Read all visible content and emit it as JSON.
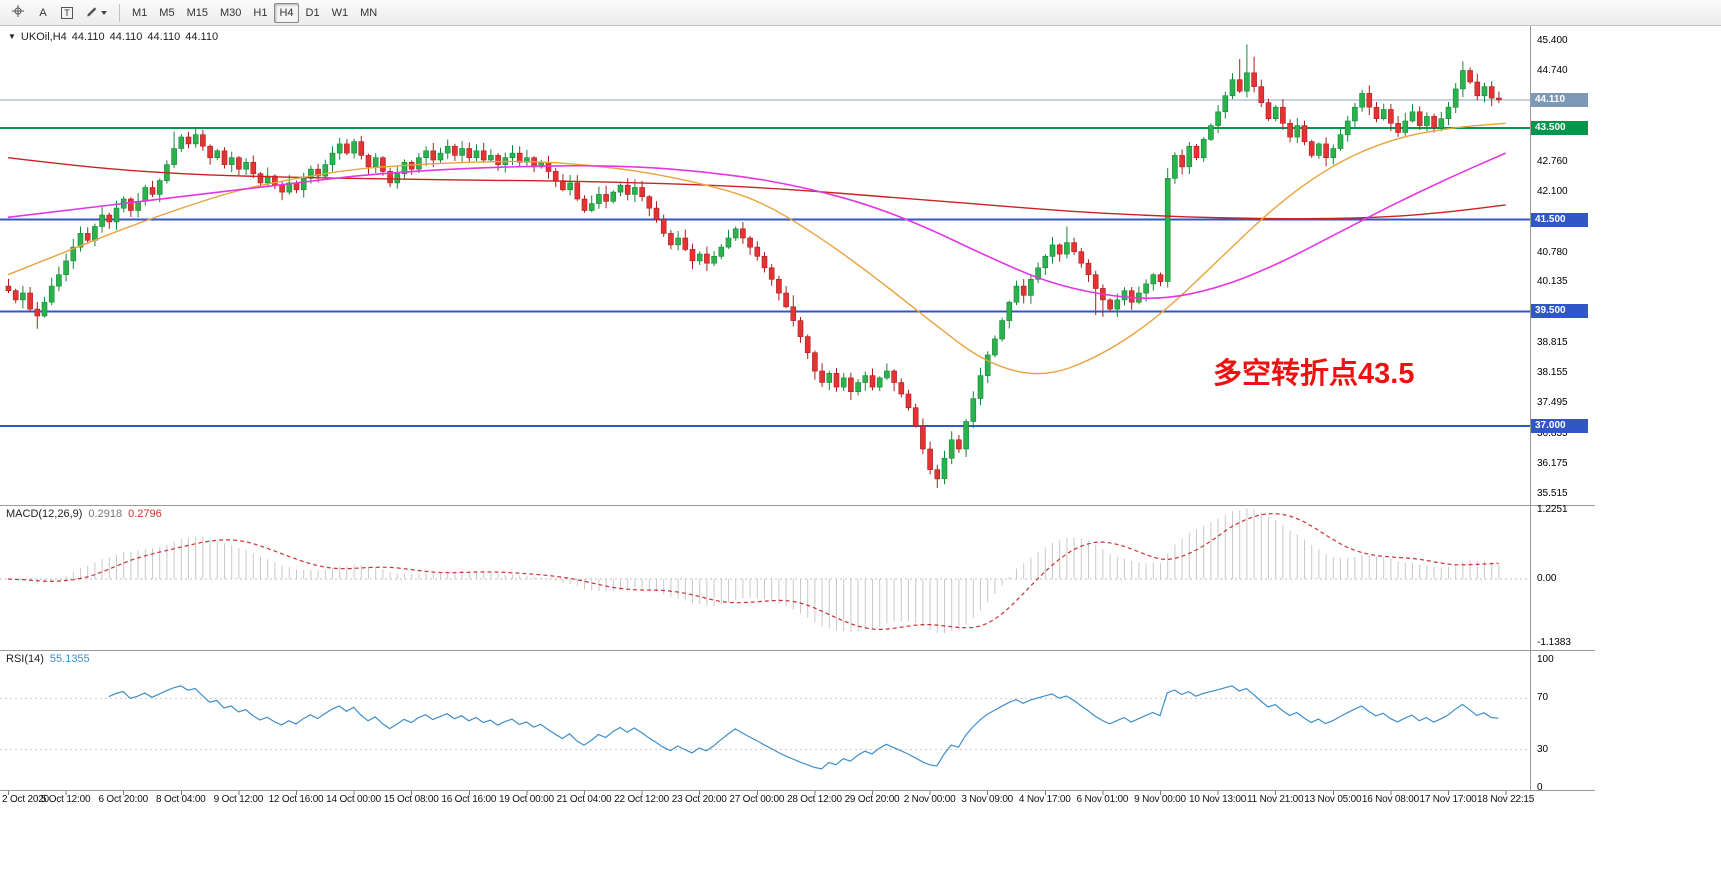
{
  "toolbar": {
    "text_label_tool": "A",
    "text_tool": "T",
    "timeframes": [
      "M1",
      "M5",
      "M15",
      "M30",
      "H1",
      "H4",
      "D1",
      "W1",
      "MN"
    ],
    "active_timeframe": "H4"
  },
  "symbol_readout": {
    "dropdown_glyph": "▼",
    "symbol": "UKOil,H4",
    "open": "44.110",
    "high": "44.110",
    "low": "44.110",
    "close": "44.110"
  },
  "annotation": {
    "text": "多空转折点43.5",
    "color": "#ee1111"
  },
  "colors": {
    "background": "#ffffff",
    "candle_up": "#2bb24c",
    "candle_up_border": "#15873a",
    "candle_down": "#e33434",
    "candle_down_border": "#aa1f1f",
    "separator": "#9a9a9a"
  },
  "chart_data": {
    "type": "candlestick",
    "symbol": "UKOil",
    "timeframe": "H4",
    "price_axis": {
      "labels": [
        "45.400",
        "44.740",
        "42.760",
        "42.100",
        "40.780",
        "40.135",
        "38.815",
        "38.155",
        "37.495",
        "36.835",
        "36.175",
        "35.515"
      ],
      "label_values": [
        45.4,
        44.74,
        42.76,
        42.1,
        40.78,
        40.135,
        38.815,
        38.155,
        37.495,
        36.835,
        36.175,
        35.515
      ],
      "min": 35.28,
      "max": 45.72
    },
    "price_markers": [
      {
        "label": "44.110",
        "value": 44.11,
        "bg": "#7d99b6",
        "type": "current-price"
      },
      {
        "label": "43.500",
        "value": 43.5,
        "bg": "#00964b",
        "type": "level"
      },
      {
        "label": "41.500",
        "value": 41.5,
        "bg": "#3056c8",
        "type": "level"
      },
      {
        "label": "39.500",
        "value": 39.5,
        "bg": "#3056c8",
        "type": "level"
      },
      {
        "label": "37.000",
        "value": 37.0,
        "bg": "#3056c8",
        "type": "level"
      }
    ],
    "hlines": [
      {
        "value": 44.11,
        "color": "#8aa6c2",
        "width": 1
      },
      {
        "value": 43.5,
        "color": "#00964b",
        "width": 2
      },
      {
        "value": 41.5,
        "color": "#3056c8",
        "width": 2
      },
      {
        "value": 39.5,
        "color": "#3056c8",
        "width": 2
      },
      {
        "value": 37.0,
        "color": "#3056c8",
        "width": 2
      }
    ],
    "candles": {
      "first_open": 40.05,
      "closes": [
        39.95,
        39.75,
        39.9,
        39.55,
        39.4,
        39.7,
        40.05,
        40.3,
        40.6,
        40.9,
        41.2,
        41.05,
        41.35,
        41.6,
        41.45,
        41.75,
        41.95,
        41.7,
        41.9,
        42.2,
        42.05,
        42.35,
        42.7,
        43.05,
        43.3,
        43.15,
        43.35,
        43.1,
        42.85,
        43.0,
        42.7,
        42.85,
        42.6,
        42.75,
        42.5,
        42.3,
        42.45,
        42.25,
        42.1,
        42.3,
        42.15,
        42.4,
        42.6,
        42.45,
        42.7,
        42.95,
        43.15,
        42.95,
        43.2,
        42.9,
        42.65,
        42.85,
        42.55,
        42.3,
        42.5,
        42.75,
        42.6,
        42.85,
        43.0,
        42.8,
        42.95,
        43.1,
        42.9,
        43.05,
        42.85,
        43.0,
        42.8,
        42.9,
        42.7,
        42.85,
        42.95,
        42.75,
        42.85,
        42.65,
        42.75,
        42.55,
        42.35,
        42.15,
        42.3,
        41.95,
        41.7,
        41.85,
        42.05,
        41.9,
        42.1,
        42.25,
        42.05,
        42.2,
        42.0,
        41.75,
        41.5,
        41.2,
        40.95,
        41.1,
        40.85,
        40.6,
        40.75,
        40.55,
        40.7,
        40.9,
        41.1,
        41.3,
        41.1,
        40.9,
        40.7,
        40.45,
        40.2,
        39.9,
        39.6,
        39.3,
        38.95,
        38.6,
        38.2,
        37.95,
        38.15,
        37.85,
        38.05,
        37.75,
        37.95,
        38.1,
        37.85,
        38.05,
        38.2,
        37.95,
        37.7,
        37.4,
        37.0,
        36.5,
        36.05,
        35.85,
        36.3,
        36.7,
        36.5,
        37.1,
        37.6,
        38.1,
        38.55,
        38.9,
        39.3,
        39.7,
        40.05,
        39.85,
        40.2,
        40.45,
        40.7,
        40.95,
        40.75,
        41.0,
        40.8,
        40.55,
        40.3,
        40.0,
        39.75,
        39.55,
        39.75,
        39.95,
        39.7,
        39.9,
        40.1,
        40.3,
        40.15,
        42.4,
        42.9,
        42.65,
        43.1,
        42.85,
        43.25,
        43.55,
        43.85,
        44.2,
        44.55,
        44.3,
        44.7,
        44.4,
        44.05,
        43.7,
        43.95,
        43.6,
        43.3,
        43.55,
        43.2,
        42.9,
        43.15,
        42.85,
        43.05,
        43.35,
        43.65,
        43.95,
        44.25,
        43.95,
        43.7,
        43.9,
        43.6,
        43.4,
        43.65,
        43.85,
        43.55,
        43.75,
        43.5,
        43.7,
        43.95,
        44.35,
        44.75,
        44.5,
        44.2,
        44.4,
        44.15,
        44.11
      ],
      "wick_overrides": {
        "4": {
          "low": 39.12
        },
        "23": {
          "high": 43.42
        },
        "26": {
          "high": 43.5
        },
        "109": {
          "high": 39.85
        },
        "128": {
          "low": 35.95
        },
        "129": {
          "low": 35.65
        },
        "147": {
          "high": 41.35
        },
        "151": {
          "low": 39.42
        },
        "152": {
          "low": 39.38
        },
        "161": {
          "low": 40.02,
          "high": 42.62
        },
        "171": {
          "high": 45.0
        },
        "172": {
          "high": 45.32
        },
        "173": {
          "high": 45.05
        },
        "202": {
          "high": 44.95
        }
      }
    },
    "moving_averages": [
      {
        "name": "slow-red",
        "color": "#cc2222",
        "width": 1.4,
        "step": 8,
        "values": [
          42.85,
          42.7,
          42.58,
          42.5,
          42.45,
          42.42,
          42.4,
          42.38,
          42.36,
          42.35,
          42.33,
          42.3,
          42.26,
          42.2,
          42.12,
          42.02,
          41.92,
          41.82,
          41.72,
          41.64,
          41.58,
          41.54,
          41.52,
          41.52,
          41.56,
          41.66,
          41.82
        ]
      },
      {
        "name": "medium-orange",
        "color": "#e8a33d",
        "width": 1.4,
        "step": 8,
        "values": [
          40.3,
          40.8,
          41.3,
          41.75,
          42.15,
          42.4,
          42.6,
          42.7,
          42.75,
          42.78,
          42.7,
          42.55,
          42.3,
          41.95,
          41.2,
          40.3,
          39.3,
          38.35,
          38.05,
          38.55,
          39.4,
          40.6,
          41.8,
          42.7,
          43.25,
          43.5,
          43.6
        ]
      },
      {
        "name": "fast-magenta",
        "color": "#e436e4",
        "width": 1.6,
        "step": 8,
        "values": [
          41.55,
          41.7,
          41.85,
          42.0,
          42.15,
          42.3,
          42.45,
          42.55,
          42.62,
          42.66,
          42.68,
          42.65,
          42.55,
          42.4,
          42.15,
          41.8,
          41.3,
          40.7,
          40.15,
          39.85,
          39.75,
          40.0,
          40.5,
          41.15,
          41.8,
          42.4,
          42.95
        ]
      }
    ],
    "macd": {
      "label": "MACD(12,26,9)",
      "value_main": "0.2918",
      "value_signal": "0.2796",
      "fast": 12,
      "slow": 26,
      "signal": 9,
      "hist_color": "#c9c9c9",
      "signal_color": "#cc3333",
      "axis_labels": [
        {
          "text": "1.2251",
          "value": 1.2251
        },
        {
          "text": "0.00",
          "value": 0
        },
        {
          "text": "-1.1383",
          "value": -1.1383
        }
      ]
    },
    "rsi": {
      "label": "RSI(14)",
      "value": "55.1355",
      "period": 14,
      "color": "#3f8fca",
      "levels": [
        70,
        30
      ],
      "axis_labels": [
        {
          "text": "100",
          "value": 100
        },
        {
          "text": "70",
          "value": 70
        },
        {
          "text": "30",
          "value": 30
        },
        {
          "text": "0",
          "value": 0
        }
      ]
    },
    "time_axis": {
      "bar_step": 8,
      "labels": [
        "2 Oct 2020",
        "5 Oct 12:00",
        "6 Oct 20:00",
        "8 Oct 04:00",
        "9 Oct 12:00",
        "12 Oct 16:00",
        "14 Oct 00:00",
        "15 Oct 08:00",
        "16 Oct 16:00",
        "19 Oct 00:00",
        "21 Oct 04:00",
        "22 Oct 12:00",
        "23 Oct 20:00",
        "27 Oct 00:00",
        "28 Oct 12:00",
        "29 Oct 20:00",
        "2 Nov 00:00",
        "3 Nov 09:00",
        "4 Nov 17:00",
        "6 Nov 01:00",
        "9 Nov 00:00",
        "10 Nov 13:00",
        "11 Nov 21:00",
        "13 Nov 05:00",
        "16 Nov 08:00",
        "17 Nov 17:00",
        "18 Nov 22:15"
      ]
    }
  }
}
